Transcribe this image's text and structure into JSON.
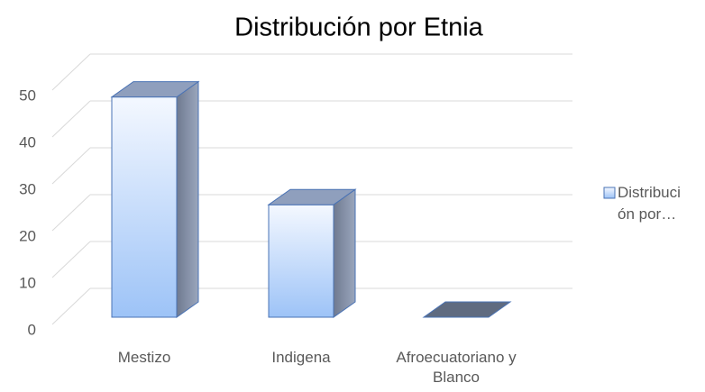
{
  "chart_data": {
    "type": "bar3d",
    "title": "Distribución por Etnia",
    "categories": [
      "Mestizo",
      "Indigena",
      "Afroecuatoriano y Blanco"
    ],
    "series": [
      {
        "name": "Distribución por…",
        "color": "#9dc3f7",
        "values": [
          47,
          24,
          0
        ]
      }
    ],
    "ylim": [
      0,
      50
    ],
    "yticks": [
      0,
      10,
      20,
      30,
      40,
      50
    ],
    "grid": true,
    "legend": "right"
  }
}
